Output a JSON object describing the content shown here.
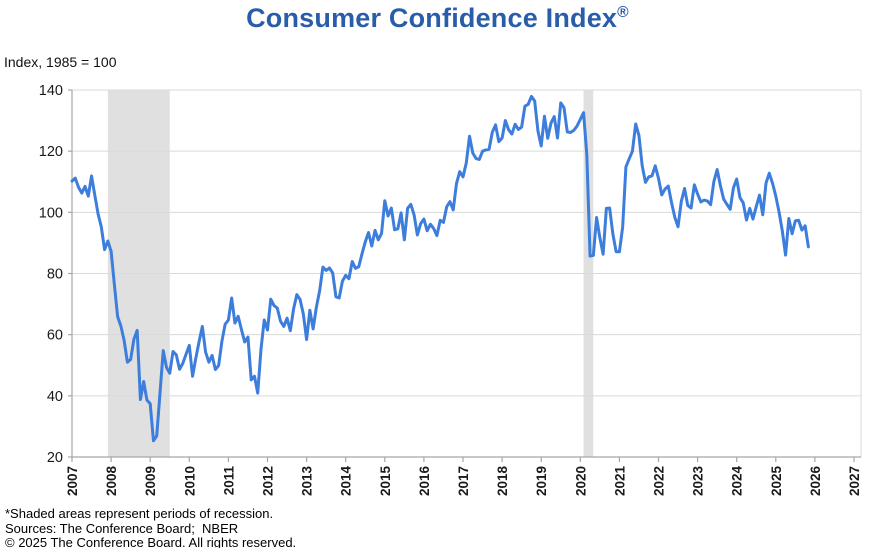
{
  "page": {
    "title": "Consumer Confidence Index",
    "title_mark": "®",
    "axis_note": "Index, 1985 = 100"
  },
  "footer": {
    "line1": "*Shaded areas represent periods of recession.",
    "line2": "Sources: The Conference Board;  NBER",
    "line3": "© 2025 The Conference Board. All rights reserved."
  },
  "colors": {
    "title_blue": "#2A5DA9",
    "line_blue": "#3D7DDC",
    "recession_band": "#E0E0E0",
    "gridline": "#DADADA",
    "axis_line": "#A6A6A6",
    "tick_text": "#1A1A1A"
  },
  "chart_data": {
    "type": "line",
    "title": "Consumer Confidence Index®",
    "subtitle": "Index, 1985 = 100",
    "xlabel": "",
    "ylabel": "Index, 1985 = 100",
    "ylim": [
      20,
      140
    ],
    "y_ticks": [
      20,
      40,
      60,
      80,
      100,
      120,
      140
    ],
    "x_ticks": [
      2007,
      2008,
      2009,
      2010,
      2011,
      2012,
      2013,
      2014,
      2015,
      2016,
      2017,
      2018,
      2019,
      2020,
      2021,
      2022,
      2023,
      2024,
      2025,
      2026,
      2027
    ],
    "xlim": [
      2007,
      2027
    ],
    "grid": "horizontal-only",
    "legend": "none",
    "frequency": "monthly",
    "x_start": "2007-01",
    "x_end": "2025-11",
    "recession_bands": [
      {
        "start": 2007.917,
        "end": 2009.5,
        "note": "Dec 2007 - Jun 2009 recession"
      },
      {
        "start": 2020.083,
        "end": 2020.333,
        "note": "Feb 2020 - Apr 2020 recession"
      }
    ],
    "series": [
      {
        "name": "Consumer Confidence Index",
        "values": [
          110.2,
          111.2,
          108.2,
          106.3,
          108.5,
          105.3,
          111.9,
          105.6,
          99.5,
          95.2,
          87.8,
          90.6,
          87.3,
          76.4,
          65.9,
          62.8,
          58.1,
          51.0,
          51.9,
          58.5,
          61.4,
          38.8,
          44.7,
          38.6,
          37.4,
          25.3,
          26.9,
          40.8,
          54.8,
          49.3,
          47.4,
          54.5,
          53.4,
          48.7,
          50.6,
          53.6,
          56.5,
          46.4,
          52.3,
          57.7,
          62.7,
          54.3,
          51.0,
          53.2,
          48.6,
          49.9,
          57.8,
          63.4,
          64.8,
          72.0,
          63.8,
          66.0,
          61.7,
          57.6,
          59.2,
          45.2,
          46.4,
          40.9,
          55.2,
          64.8,
          61.5,
          71.6,
          69.5,
          68.7,
          64.4,
          62.7,
          65.4,
          61.3,
          68.4,
          73.1,
          71.5,
          66.7,
          58.4,
          68.0,
          61.9,
          69.0,
          74.3,
          82.1,
          81.0,
          81.8,
          80.2,
          72.4,
          72.0,
          77.5,
          79.4,
          78.3,
          83.9,
          81.7,
          82.2,
          86.4,
          90.3,
          93.4,
          89.0,
          94.1,
          91.0,
          93.1,
          103.8,
          98.8,
          101.4,
          94.3,
          94.6,
          99.8,
          91.0,
          101.3,
          102.6,
          99.1,
          92.6,
          96.3,
          97.8,
          94.0,
          96.1,
          94.7,
          92.4,
          97.4,
          96.7,
          101.8,
          103.5,
          100.8,
          109.4,
          113.3,
          111.6,
          116.1,
          124.9,
          119.4,
          117.6,
          117.3,
          120.0,
          120.4,
          120.6,
          126.2,
          128.6,
          123.1,
          124.3,
          130.0,
          127.0,
          125.6,
          128.8,
          127.1,
          127.9,
          134.7,
          135.3,
          137.9,
          136.4,
          126.6,
          121.7,
          131.4,
          124.2,
          129.2,
          131.3,
          124.3,
          135.8,
          134.2,
          126.3,
          126.1,
          126.8,
          128.2,
          130.4,
          132.6,
          118.8,
          85.7,
          85.9,
          98.3,
          91.7,
          86.3,
          101.3,
          101.4,
          92.9,
          87.1,
          87.1,
          95.2,
          114.9,
          117.5,
          120.0,
          128.9,
          125.1,
          115.2,
          109.8,
          111.6,
          111.9,
          115.2,
          111.1,
          105.7,
          107.6,
          108.6,
          103.2,
          98.4,
          95.3,
          103.6,
          107.8,
          102.2,
          101.4,
          109.0,
          106.0,
          103.4,
          104.0,
          103.7,
          102.5,
          110.1,
          114.0,
          108.7,
          104.3,
          102.6,
          101.0,
          108.0,
          110.9,
          104.8,
          103.1,
          97.5,
          101.3,
          97.8,
          101.9,
          105.6,
          99.2,
          109.6,
          112.8,
          109.5,
          105.3,
          100.1,
          93.9,
          86.0,
          98.0,
          93.0,
          97.2,
          97.4,
          94.2,
          95.6,
          88.7
        ]
      }
    ]
  }
}
